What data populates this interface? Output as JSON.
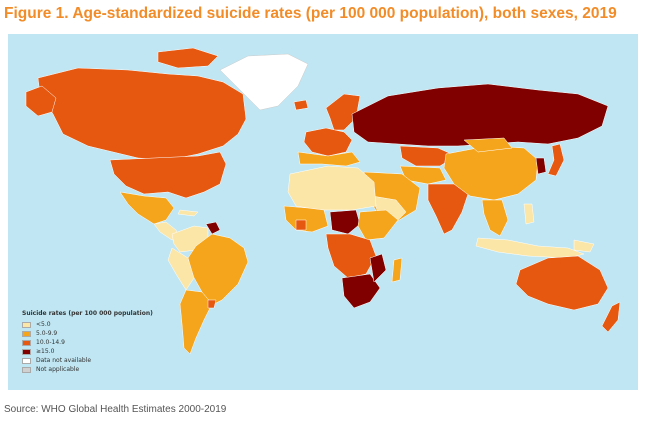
{
  "figure": {
    "title": "Figure 1. Age-standardized suicide rates (per 100 000 population), both sexes, 2019",
    "source": "Source: WHO Global Health Estimates 2000-2019"
  },
  "map": {
    "ocean_color": "#bfe6f2",
    "legend": {
      "title": "Suicide rates (per 100 000 population)",
      "items": [
        {
          "label": "<5.0",
          "color": "#fbe6a8"
        },
        {
          "label": "5.0-9.9",
          "color": "#f5a51c"
        },
        {
          "label": "10.0-14.9",
          "color": "#e6570f"
        },
        {
          "label": "≥15.0",
          "color": "#800000"
        },
        {
          "label": "Data not available",
          "color": "#ffffff"
        },
        {
          "label": "Not applicable",
          "color": "#d0d0d0"
        }
      ]
    },
    "regions": [
      {
        "name": "Canada",
        "category": "10.0-14.9"
      },
      {
        "name": "United States of America",
        "category": "10.0-14.9"
      },
      {
        "name": "Greenland",
        "category": "Data not available"
      },
      {
        "name": "Mexico",
        "category": "5.0-9.9"
      },
      {
        "name": "Central America",
        "category": "<5.0"
      },
      {
        "name": "Colombia",
        "category": "<5.0"
      },
      {
        "name": "Venezuela",
        "category": "<5.0"
      },
      {
        "name": "Guyana",
        "category": "≥15.0"
      },
      {
        "name": "Brazil",
        "category": "5.0-9.9"
      },
      {
        "name": "Peru",
        "category": "<5.0"
      },
      {
        "name": "Argentina",
        "category": "5.0-9.9"
      },
      {
        "name": "Uruguay",
        "category": "10.0-14.9"
      },
      {
        "name": "Iceland",
        "category": "10.0-14.9"
      },
      {
        "name": "Western Europe",
        "category": "10.0-14.9"
      },
      {
        "name": "Southern Europe",
        "category": "5.0-9.9"
      },
      {
        "name": "Russian Federation",
        "category": "≥15.0"
      },
      {
        "name": "Kazakhstan",
        "category": "10.0-14.9"
      },
      {
        "name": "North Africa",
        "category": "<5.0"
      },
      {
        "name": "West Africa",
        "category": "5.0-9.9"
      },
      {
        "name": "Côte d'Ivoire",
        "category": "10.0-14.9"
      },
      {
        "name": "Central African Republic",
        "category": "≥15.0"
      },
      {
        "name": "Democratic Republic of the Congo",
        "category": "10.0-14.9"
      },
      {
        "name": "Lesotho",
        "category": "≥15.0"
      },
      {
        "name": "Madagascar",
        "category": "5.0-9.9"
      },
      {
        "name": "Middle East",
        "category": "5.0-9.9"
      },
      {
        "name": "India",
        "category": "10.0-14.9"
      },
      {
        "name": "China",
        "category": "5.0-9.9"
      },
      {
        "name": "Republic of Korea",
        "category": "≥15.0"
      },
      {
        "name": "Japan",
        "category": "10.0-14.9"
      },
      {
        "name": "Indonesia",
        "category": "<5.0"
      },
      {
        "name": "Philippines",
        "category": "<5.0"
      },
      {
        "name": "Australia",
        "category": "10.0-14.9"
      },
      {
        "name": "New Zealand",
        "category": "10.0-14.9"
      }
    ]
  }
}
